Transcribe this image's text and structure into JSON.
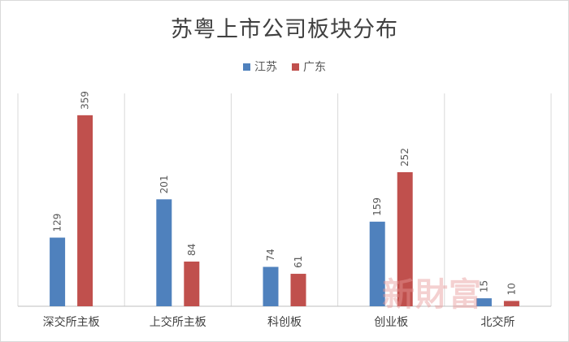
{
  "chart_data": {
    "type": "bar",
    "title": "苏粤上市公司板块分布",
    "categories": [
      "深交所主板",
      "上交所主板",
      "科创板",
      "创业板",
      "北交所"
    ],
    "series": [
      {
        "name": "江苏",
        "values": [
          129,
          201,
          74,
          159,
          15
        ],
        "color": "#4f81bd"
      },
      {
        "name": "广东",
        "values": [
          359,
          84,
          61,
          252,
          10
        ],
        "color": "#c0504d"
      }
    ],
    "ylim": [
      0,
      400
    ],
    "grid": "vertical category separators",
    "legend_position": "top"
  },
  "watermark": "新財富"
}
